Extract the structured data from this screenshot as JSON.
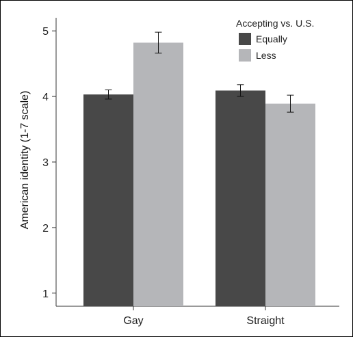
{
  "chart_data": {
    "type": "bar",
    "title": "",
    "xlabel": "",
    "ylabel": "American identity (1-7 scale)",
    "categories": [
      "Gay",
      "Straight"
    ],
    "series": [
      {
        "name": "Equally",
        "color": "#484848",
        "values": [
          4.03,
          4.09
        ],
        "error": [
          [
            3.96,
            4.1
          ],
          [
            4.0,
            4.18
          ]
        ]
      },
      {
        "name": "Less",
        "color": "#b5b6b9",
        "values": [
          4.82,
          3.89
        ],
        "error": [
          [
            4.66,
            4.98
          ],
          [
            3.76,
            4.02
          ]
        ]
      }
    ],
    "ylim": [
      0.8,
      5.2
    ],
    "yticks": [
      1,
      2,
      3,
      4,
      5
    ],
    "grid": false,
    "legend": {
      "title": "Accepting vs. U.S.",
      "placement": "top-right"
    }
  }
}
